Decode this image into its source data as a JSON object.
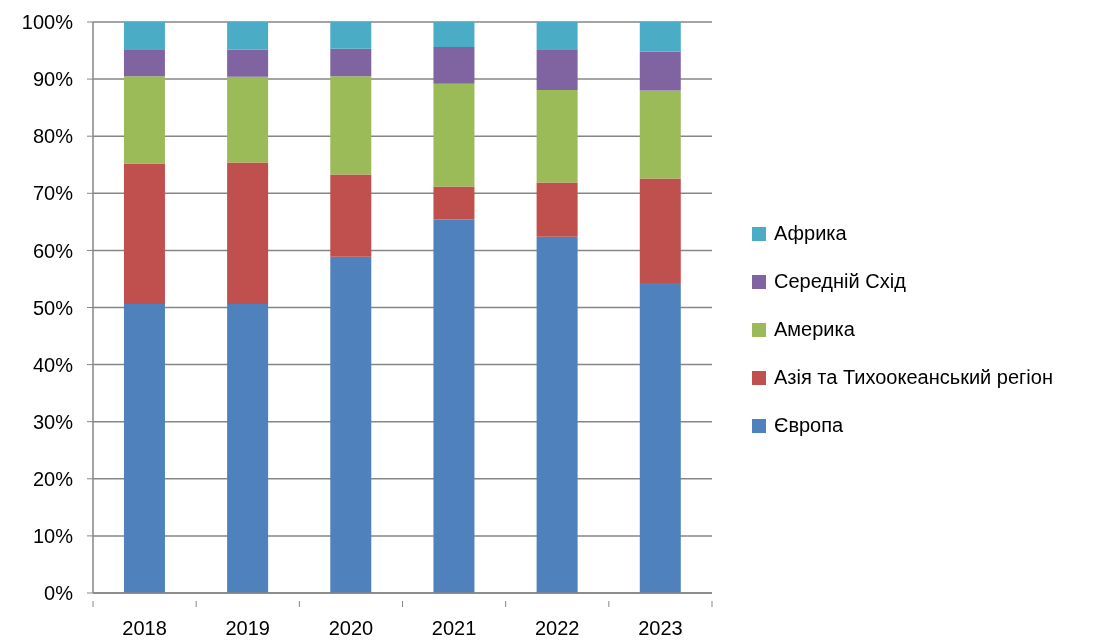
{
  "chart_data": {
    "type": "bar",
    "categories": [
      "2018",
      "2019",
      "2020",
      "2021",
      "2022",
      "2023"
    ],
    "series": [
      {
        "name": "Європа",
        "color": "#4f81bd",
        "values": [
          50.6,
          50.6,
          58.9,
          65.4,
          62.4,
          54.3
        ]
      },
      {
        "name": "Азія та Тихоокеанський регіон",
        "color": "#c0504d",
        "values": [
          24.6,
          24.8,
          14.4,
          5.8,
          9.5,
          18.3
        ]
      },
      {
        "name": "Америка",
        "color": "#9bbb59",
        "values": [
          15.3,
          15.0,
          17.2,
          18.0,
          16.2,
          15.4
        ]
      },
      {
        "name": "Середній Схід",
        "color": "#8064a2",
        "values": [
          4.6,
          4.8,
          4.8,
          6.4,
          7.0,
          6.8
        ]
      },
      {
        "name": "Африка",
        "color": "#4bacc6",
        "values": [
          4.9,
          4.8,
          4.7,
          4.4,
          4.9,
          5.2
        ]
      }
    ],
    "stacked": true,
    "ylim": [
      0,
      100
    ],
    "yticks": [
      {
        "value": 0,
        "label": "0%"
      },
      {
        "value": 10,
        "label": "10%"
      },
      {
        "value": 20,
        "label": "20%"
      },
      {
        "value": 30,
        "label": "30%"
      },
      {
        "value": 40,
        "label": "40%"
      },
      {
        "value": 50,
        "label": "50%"
      },
      {
        "value": 60,
        "label": "60%"
      },
      {
        "value": 70,
        "label": "70%"
      },
      {
        "value": 80,
        "label": "80%"
      },
      {
        "value": 90,
        "label": "90%"
      },
      {
        "value": 100,
        "label": "100%"
      }
    ],
    "grid": "y",
    "legend": "right"
  }
}
